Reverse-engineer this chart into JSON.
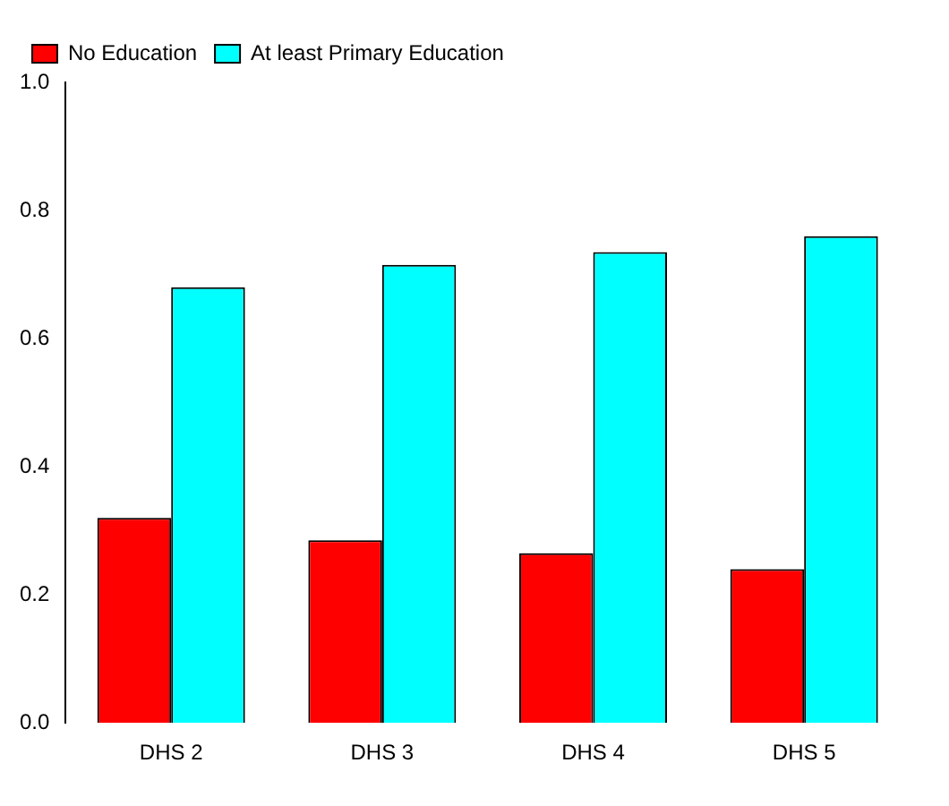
{
  "chart_data": {
    "type": "bar",
    "categories": [
      "DHS 2",
      "DHS 3",
      "DHS 4",
      "DHS 5"
    ],
    "series": [
      {
        "name": "No Education",
        "color": "#ff0000",
        "values": [
          0.32,
          0.285,
          0.265,
          0.24
        ]
      },
      {
        "name": "At least Primary Education",
        "color": "#00ffff",
        "values": [
          0.68,
          0.715,
          0.735,
          0.76
        ]
      }
    ],
    "ylim": [
      0,
      1
    ],
    "yticks": [
      {
        "value": 0,
        "label": "0.0"
      },
      {
        "value": 0.2,
        "label": "0.2"
      },
      {
        "value": 0.4,
        "label": "0.4"
      },
      {
        "value": 0.6,
        "label": "0.6"
      },
      {
        "value": 0.8,
        "label": "0.8"
      },
      {
        "value": 1,
        "label": "1.0"
      }
    ],
    "grid": false,
    "legend": "top left"
  }
}
